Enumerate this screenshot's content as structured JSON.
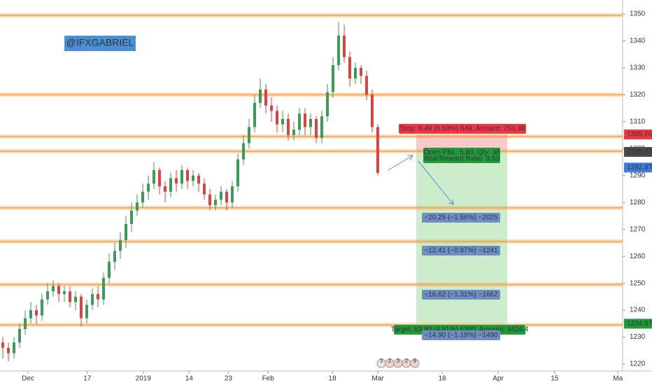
{
  "chart_data": {
    "type": "candlestick",
    "watermark": "@IFXGABRIEL",
    "up_color": "#3d9a58",
    "down_color": "#d64541",
    "open": [
      1228,
      1226,
      1224,
      1228,
      1233,
      1237,
      1240,
      1238,
      1244,
      1247,
      1249,
      1246,
      1247,
      1243,
      1245,
      1237,
      1242,
      1246,
      1244,
      1252,
      1258,
      1262,
      1266,
      1272,
      1277,
      1280,
      1284,
      1287,
      1292,
      1286,
      1284,
      1289,
      1287,
      1292,
      1288,
      1290,
      1287,
      1283,
      1279,
      1281,
      1284,
      1280,
      1286,
      1296,
      1302,
      1308,
      1317,
      1322,
      1316,
      1314,
      1309,
      1311,
      1305,
      1307,
      1313,
      1308,
      1311,
      1304,
      1312,
      1321,
      1331,
      1342,
      1334,
      1326,
      1330,
      1327,
      1320,
      1308
    ],
    "high": [
      1230,
      1228,
      1230,
      1235,
      1240,
      1243,
      1242,
      1246,
      1250,
      1251,
      1250,
      1249,
      1249,
      1247,
      1246,
      1244,
      1248,
      1249,
      1254,
      1261,
      1265,
      1269,
      1275,
      1280,
      1283,
      1287,
      1290,
      1295,
      1293,
      1288,
      1291,
      1292,
      1294,
      1293,
      1292,
      1291,
      1289,
      1285,
      1283,
      1286,
      1285,
      1288,
      1298,
      1305,
      1311,
      1320,
      1326,
      1324,
      1319,
      1316,
      1314,
      1313,
      1310,
      1315,
      1315,
      1313,
      1312,
      1314,
      1324,
      1334,
      1347,
      1346,
      1336,
      1332,
      1331,
      1329,
      1322,
      1309
    ],
    "low": [
      1222,
      1221,
      1222,
      1226,
      1231,
      1235,
      1235,
      1236,
      1242,
      1245,
      1243,
      1243,
      1241,
      1240,
      1234,
      1235,
      1240,
      1241,
      1242,
      1250,
      1255,
      1259,
      1263,
      1269,
      1275,
      1278,
      1281,
      1285,
      1283,
      1280,
      1282,
      1284,
      1285,
      1285,
      1286,
      1284,
      1281,
      1277,
      1277,
      1279,
      1277,
      1278,
      1284,
      1294,
      1300,
      1306,
      1315,
      1313,
      1310,
      1306,
      1306,
      1303,
      1303,
      1305,
      1305,
      1305,
      1302,
      1302,
      1310,
      1319,
      1329,
      1332,
      1323,
      1324,
      1324,
      1318,
      1306,
      1290
    ],
    "close": [
      1226,
      1224,
      1228,
      1233,
      1237,
      1240,
      1238,
      1244,
      1247,
      1249,
      1246,
      1247,
      1243,
      1245,
      1237,
      1242,
      1246,
      1244,
      1252,
      1258,
      1262,
      1266,
      1272,
      1277,
      1280,
      1284,
      1287,
      1292,
      1286,
      1284,
      1289,
      1287,
      1292,
      1288,
      1290,
      1287,
      1283,
      1279,
      1281,
      1284,
      1280,
      1286,
      1296,
      1302,
      1308,
      1317,
      1322,
      1316,
      1314,
      1309,
      1311,
      1305,
      1307,
      1313,
      1308,
      1311,
      1304,
      1312,
      1321,
      1331,
      1342,
      1334,
      1326,
      1330,
      1327,
      1320,
      1308,
      1291
    ],
    "ylim": [
      1217.4,
      1355.2
    ],
    "yticks": [
      1220,
      1230,
      1240,
      1250,
      1260,
      1270,
      1280,
      1290,
      1300,
      1310,
      1320,
      1330,
      1340,
      1350
    ],
    "xlim": [
      -0.5,
      110.75
    ],
    "xticks": [
      {
        "value": 4.5,
        "label": "Dec"
      },
      {
        "value": 15.1,
        "label": "17"
      },
      {
        "value": 25.1,
        "label": "2019"
      },
      {
        "value": 33.3,
        "label": "14"
      },
      {
        "value": 40.3,
        "label": "23"
      },
      {
        "value": 47.4,
        "label": "Feb"
      },
      {
        "value": 58.9,
        "label": "18"
      },
      {
        "value": 67,
        "label": "Mar"
      },
      {
        "value": 78.5,
        "label": "18"
      },
      {
        "value": 88.5,
        "label": "Apr"
      },
      {
        "value": 98.6,
        "label": "15"
      },
      {
        "value": 109.9,
        "label": "Ma"
      }
    ],
    "levels": [
      1349.5,
      1320,
      1304.5,
      1299,
      1278,
      1265.5,
      1249.5,
      1234.5
    ],
    "level_color": "#f5a04a",
    "position": {
      "entry": 1298.77,
      "stop": 1305.26,
      "target": 1234.97,
      "stop_label": "Stop: 6.49 (0.50%) 649, Amount: 753.38",
      "pnl_label": "Open P&L: 5.80, Qty: 38",
      "rr_label": "Risk/Reward Ratio: 9.83",
      "target_label": "Target: 63.80 (4.91%) 6380, Amount: 3424.4"
    },
    "measurements": [
      "−20.25 (−1.56%) −2025",
      "−12.41 (−0.97%) −1241",
      "−16.62 (−1.31%) −1662",
      "−14.90 (−1.19%) −1490"
    ],
    "price_tags": [
      {
        "value": 1305.26,
        "color": "#f23645"
      },
      {
        "value": 1298.77,
        "color": "#4a4a4a"
      },
      {
        "value": 1292.97,
        "color": "#3d7ddb"
      },
      {
        "value": 1234.97,
        "color": "#1e9b3a"
      }
    ],
    "events": [
      "3",
      "2",
      "3",
      "2",
      "9"
    ]
  }
}
